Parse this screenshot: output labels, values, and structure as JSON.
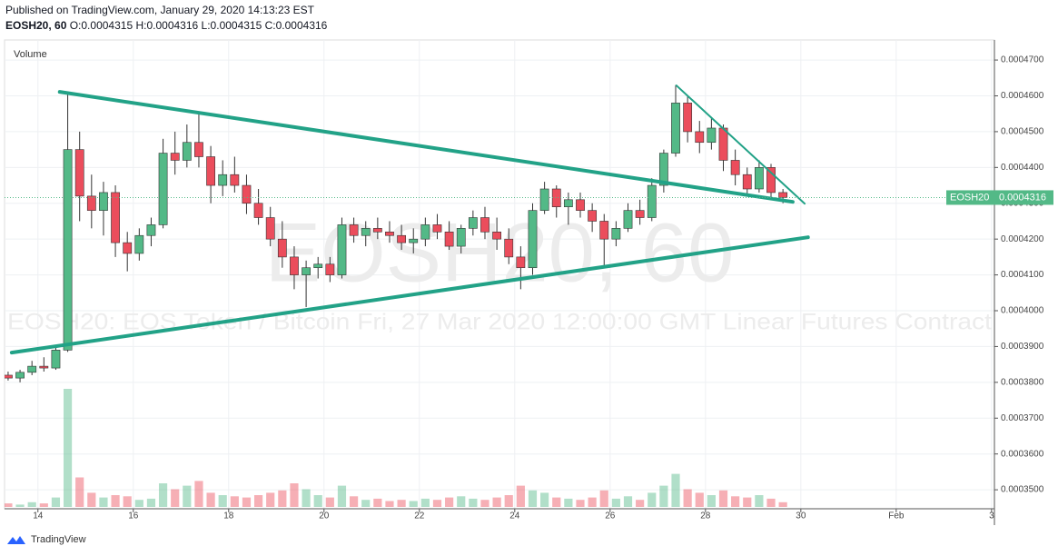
{
  "header": {
    "published": "Published on TradingView.com, January 29, 2020 14:13:23 EST",
    "symbol": "EOSH20, 60",
    "open": "O:0.0004315",
    "high": "H:0.0004316",
    "low": "L:0.0004315",
    "close": "C:0.0004316"
  },
  "footer": {
    "brand": "TradingView"
  },
  "chart_data": {
    "type": "candlestick",
    "volume_label": "Volume",
    "watermark": {
      "title": "EOSH20, 60",
      "subtitle": "EOSH20: EOS Token / Bitcoin Fri, 27 Mar 2020 12:00:00 GMT Linear Futures Contract"
    },
    "price_label": "EOSH20",
    "last_price": 0.0004316,
    "up_color": "#53b987",
    "down_color": "#eb4d5c",
    "xlim": [
      13.3,
      34.06
    ],
    "xticks": [
      14,
      16,
      18,
      20,
      22,
      24,
      26,
      28,
      30,
      {
        "value": 32,
        "label": "Feb"
      },
      {
        "value": 34,
        "label": "3"
      }
    ],
    "ylim": [
      0.0003447,
      0.0004756
    ],
    "yticks": [
      {
        "value": 0.00035,
        "label": "0.0003500"
      },
      {
        "value": 0.00036,
        "label": "0.0003600"
      },
      {
        "value": 0.00037,
        "label": "0.0003700"
      },
      {
        "value": 0.00038,
        "label": "0.0003800"
      },
      {
        "value": 0.00039,
        "label": "0.0003900"
      },
      {
        "value": 0.0004,
        "label": "0.0004000"
      },
      {
        "value": 0.00041,
        "label": "0.0004100"
      },
      {
        "value": 0.00042,
        "label": "0.0004200"
      },
      {
        "value": 0.00043,
        "label": "0.0004300"
      },
      {
        "value": 0.00044,
        "label": "0.0004400"
      },
      {
        "value": 0.00045,
        "label": "0.0004500"
      },
      {
        "value": 0.00046,
        "label": "0.0004600"
      },
      {
        "value": 0.00047,
        "label": "0.0004700"
      }
    ],
    "grid": true,
    "x": [
      13.375,
      13.625,
      13.875,
      14.125,
      14.375,
      14.625,
      14.875,
      15.125,
      15.375,
      15.625,
      15.875,
      16.125,
      16.375,
      16.625,
      16.875,
      17.125,
      17.375,
      17.625,
      17.875,
      18.125,
      18.375,
      18.625,
      18.875,
      19.125,
      19.375,
      19.625,
      19.875,
      20.125,
      20.375,
      20.625,
      20.875,
      21.125,
      21.375,
      21.625,
      21.875,
      22.125,
      22.375,
      22.625,
      22.875,
      23.125,
      23.375,
      23.625,
      23.875,
      24.125,
      24.375,
      24.625,
      24.875,
      25.125,
      25.375,
      25.625,
      25.875,
      26.125,
      26.375,
      26.625,
      26.875,
      27.125,
      27.375,
      27.625,
      27.875,
      28.125,
      28.375,
      28.625,
      28.875,
      29.125,
      29.375,
      29.625
    ],
    "ohlc": [
      [
        0.000382,
        0.000383,
        0.0003805,
        0.0003812
      ],
      [
        0.0003812,
        0.0003835,
        0.00038,
        0.0003828
      ],
      [
        0.0003828,
        0.000386,
        0.000382,
        0.0003845
      ],
      [
        0.0003845,
        0.000387,
        0.000383,
        0.000384
      ],
      [
        0.000384,
        0.00039,
        0.0003835,
        0.000389
      ],
      [
        0.000389,
        0.0004605,
        0.0003885,
        0.000445
      ],
      [
        0.000445,
        0.00045,
        0.000425,
        0.000432
      ],
      [
        0.000432,
        0.000438,
        0.000423,
        0.000428
      ],
      [
        0.000428,
        0.000436,
        0.000421,
        0.000433
      ],
      [
        0.000433,
        0.000435,
        0.000415,
        0.000419
      ],
      [
        0.000419,
        0.000422,
        0.000411,
        0.000416
      ],
      [
        0.000416,
        0.000423,
        0.000414,
        0.000421
      ],
      [
        0.000421,
        0.000426,
        0.000418,
        0.000424
      ],
      [
        0.000424,
        0.000448,
        0.000423,
        0.000444
      ],
      [
        0.000444,
        0.00045,
        0.000438,
        0.000442
      ],
      [
        0.000442,
        0.000452,
        0.00044,
        0.000447
      ],
      [
        0.000447,
        0.000455,
        0.00044,
        0.000443
      ],
      [
        0.000443,
        0.000446,
        0.00043,
        0.000435
      ],
      [
        0.000435,
        0.000442,
        0.000432,
        0.000438
      ],
      [
        0.000438,
        0.000443,
        0.000433,
        0.000435
      ],
      [
        0.000435,
        0.000438,
        0.000427,
        0.00043
      ],
      [
        0.00043,
        0.000434,
        0.000424,
        0.000426
      ],
      [
        0.000426,
        0.000429,
        0.000418,
        0.00042
      ],
      [
        0.00042,
        0.000425,
        0.000412,
        0.000415
      ],
      [
        0.000415,
        0.000418,
        0.000406,
        0.00041
      ],
      [
        0.00041,
        0.000414,
        0.000401,
        0.000412
      ],
      [
        0.000412,
        0.000415,
        0.000409,
        0.000413
      ],
      [
        0.000413,
        0.000415,
        0.000408,
        0.00041
      ],
      [
        0.00041,
        0.000426,
        0.000409,
        0.000424
      ],
      [
        0.000424,
        0.000426,
        0.000419,
        0.000421
      ],
      [
        0.000421,
        0.000425,
        0.000418,
        0.000423
      ],
      [
        0.000423,
        0.000426,
        0.00042,
        0.000422
      ],
      [
        0.000422,
        0.000425,
        0.000419,
        0.000421
      ],
      [
        0.000421,
        0.000424,
        0.000417,
        0.000419
      ],
      [
        0.000419,
        0.000423,
        0.000416,
        0.00042
      ],
      [
        0.00042,
        0.000426,
        0.000418,
        0.000424
      ],
      [
        0.000424,
        0.000427,
        0.00042,
        0.000422
      ],
      [
        0.000422,
        0.000425,
        0.000417,
        0.000418
      ],
      [
        0.000418,
        0.000424,
        0.000416,
        0.000423
      ],
      [
        0.000423,
        0.000428,
        0.000421,
        0.000426
      ],
      [
        0.000426,
        0.000429,
        0.00042,
        0.000422
      ],
      [
        0.000422,
        0.000426,
        0.000417,
        0.00042
      ],
      [
        0.00042,
        0.000423,
        0.000413,
        0.000415
      ],
      [
        0.000415,
        0.000418,
        0.000406,
        0.000412
      ],
      [
        0.000412,
        0.00043,
        0.00041,
        0.000428
      ],
      [
        0.000428,
        0.000436,
        0.000427,
        0.000434
      ],
      [
        0.000434,
        0.000435,
        0.000426,
        0.000429
      ],
      [
        0.000429,
        0.000433,
        0.000424,
        0.000431
      ],
      [
        0.000431,
        0.000433,
        0.000426,
        0.000428
      ],
      [
        0.000428,
        0.00043,
        0.000422,
        0.000425
      ],
      [
        0.000425,
        0.000427,
        0.000412,
        0.00042
      ],
      [
        0.00042,
        0.000425,
        0.000418,
        0.000423
      ],
      [
        0.000423,
        0.00043,
        0.000422,
        0.000428
      ],
      [
        0.000428,
        0.000431,
        0.000424,
        0.000426
      ],
      [
        0.000426,
        0.000437,
        0.000425,
        0.000435
      ],
      [
        0.000435,
        0.000445,
        0.000433,
        0.000444
      ],
      [
        0.000444,
        0.000463,
        0.000443,
        0.000458
      ],
      [
        0.000458,
        0.00046,
        0.000447,
        0.00045
      ],
      [
        0.00045,
        0.000453,
        0.000444,
        0.000447
      ],
      [
        0.000447,
        0.000454,
        0.000445,
        0.000451
      ],
      [
        0.000451,
        0.000452,
        0.000439,
        0.000442
      ],
      [
        0.000442,
        0.000445,
        0.000435,
        0.000438
      ],
      [
        0.000438,
        0.00044,
        0.000432,
        0.000434
      ],
      [
        0.000434,
        0.000442,
        0.000433,
        0.00044
      ],
      [
        0.00044,
        0.000441,
        0.000431,
        0.000433
      ],
      [
        0.000433,
        0.000434,
        0.00043,
        0.0004316
      ]
    ],
    "volume": [
      3,
      2,
      4,
      3,
      8,
      100,
      25,
      12,
      8,
      10,
      9,
      6,
      7,
      20,
      15,
      18,
      22,
      12,
      10,
      9,
      8,
      10,
      12,
      14,
      20,
      15,
      10,
      8,
      18,
      9,
      6,
      7,
      5,
      6,
      5,
      7,
      6,
      8,
      9,
      7,
      6,
      8,
      10,
      18,
      14,
      12,
      8,
      7,
      6,
      8,
      14,
      7,
      9,
      6,
      12,
      18,
      28,
      15,
      12,
      10,
      14,
      9,
      8,
      10,
      7,
      4
    ],
    "trendlines": [
      {
        "x": [
          14.457,
          29.83
        ],
        "y": [
          0.0004611,
          0.0004304
        ],
        "color": "#22a287",
        "width": 4
      },
      {
        "x": [
          13.45,
          30.15
        ],
        "y": [
          0.0003883,
          0.0004205
        ],
        "color": "#22a287",
        "width": 4
      },
      {
        "x": [
          27.39,
          30.08
        ],
        "y": [
          0.0004629,
          0.0004299
        ],
        "color": "#22a287",
        "width": 2
      }
    ]
  }
}
